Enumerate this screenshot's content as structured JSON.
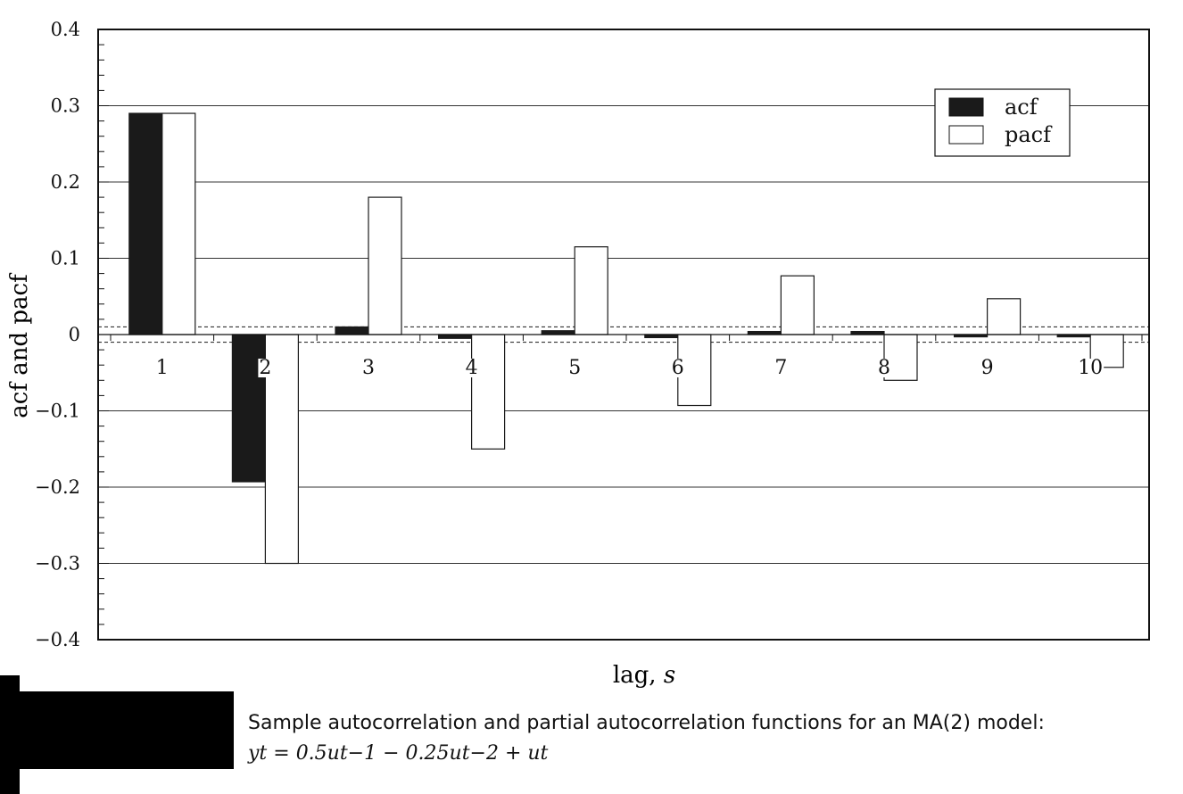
{
  "chart_data": {
    "type": "bar",
    "categories": [
      "1",
      "2",
      "3",
      "4",
      "5",
      "6",
      "7",
      "8",
      "9",
      "10"
    ],
    "series": [
      {
        "name": "acf",
        "color": "#1a1a1a",
        "values": [
          0.29,
          -0.193,
          0.01,
          -0.005,
          0.005,
          -0.004,
          0.004,
          0.004,
          -0.003,
          -0.003
        ]
      },
      {
        "name": "pacf",
        "color": "#ffffff",
        "values": [
          0.29,
          -0.3,
          0.18,
          -0.15,
          0.115,
          -0.093,
          0.077,
          -0.06,
          0.047,
          -0.043
        ]
      }
    ],
    "xlabel": "lag, s",
    "ylabel": "acf and pacf",
    "ylim": [
      -0.4,
      0.4
    ],
    "yticks": [
      0.4,
      0.3,
      0.2,
      0.1,
      0,
      -0.1,
      -0.2,
      -0.3,
      -0.4
    ],
    "ytick_labels": [
      "0.4",
      "0.3",
      "0.2",
      "0.1",
      "0",
      "−0.1",
      "−0.2",
      "−0.3",
      "−0.4"
    ],
    "confidence_band": 0.01,
    "grid": true,
    "legend": "top-right"
  },
  "caption": {
    "text": "Sample autocorrelation and partial autocorrelation functions for an MA(2) model:",
    "formula": "yt = 0.5ut−1 − 0.25ut−2 + ut"
  }
}
